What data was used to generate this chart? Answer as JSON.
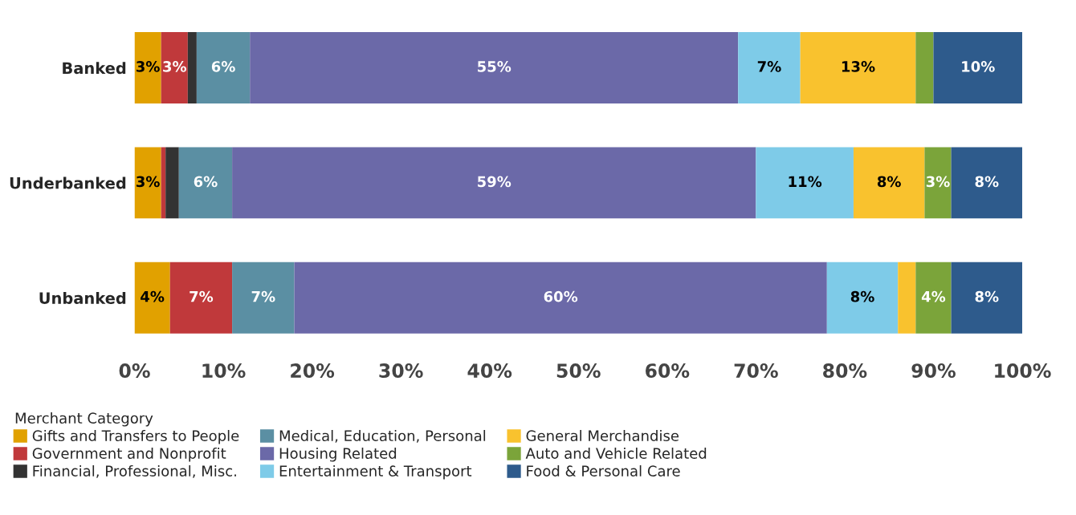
{
  "chart_data": {
    "type": "bar",
    "orientation": "horizontal",
    "stacked": true,
    "categories": [
      "Banked",
      "Underbanked",
      "Unbanked"
    ],
    "xlim": [
      0,
      100
    ],
    "xticks": [
      {
        "value": 0,
        "label": "0%"
      },
      {
        "value": 10,
        "label": "10%"
      },
      {
        "value": 20,
        "label": "20%"
      },
      {
        "value": 30,
        "label": "30%"
      },
      {
        "value": 40,
        "label": "40%"
      },
      {
        "value": 50,
        "label": "50%"
      },
      {
        "value": 60,
        "label": "60%"
      },
      {
        "value": 70,
        "label": "70%"
      },
      {
        "value": 80,
        "label": "80%"
      },
      {
        "value": 90,
        "label": "90%"
      },
      {
        "value": 100,
        "label": "100%"
      }
    ],
    "legend": "bottom left",
    "legend_title": "Merchant Category",
    "grid": false,
    "series": [
      {
        "name": "Gifts and Transfers to People",
        "color": "#e1a100",
        "values": [
          3,
          3,
          4
        ],
        "value_labels": [
          "3%",
          "3%",
          "4%"
        ]
      },
      {
        "name": "Government and Nonprofit",
        "color": "#c0393b",
        "values": [
          3,
          0.5,
          7
        ],
        "value_labels": [
          "3%",
          null,
          "7%"
        ]
      },
      {
        "name": "Financial, Professional, Misc.",
        "color": "#333333",
        "values": [
          1,
          1.5,
          0
        ],
        "value_labels": [
          null,
          null,
          null
        ]
      },
      {
        "name": "Medical, Education, Personal",
        "color": "#5b8fa3",
        "values": [
          6,
          6,
          7
        ],
        "value_labels": [
          "6%",
          "6%",
          "7%"
        ]
      },
      {
        "name": "Housing Related",
        "color": "#6b69a8",
        "values": [
          55,
          59,
          60
        ],
        "value_labels": [
          "55%",
          "59%",
          "60%"
        ]
      },
      {
        "name": "Entertainment & Transport",
        "color": "#7ecbe8",
        "values": [
          7,
          11,
          8
        ],
        "value_labels": [
          "7%",
          "11%",
          "8%"
        ]
      },
      {
        "name": "General Merchandise",
        "color": "#f9c22e",
        "values": [
          13,
          8,
          2
        ],
        "value_labels": [
          "13%",
          "8%",
          null
        ]
      },
      {
        "name": "Auto and Vehicle Related",
        "color": "#7ba43a",
        "values": [
          2,
          3,
          4
        ],
        "value_labels": [
          null,
          "3%",
          "4%"
        ]
      },
      {
        "name": "Food & Personal Care",
        "color": "#2e5b8c",
        "values": [
          10,
          8,
          8
        ],
        "value_labels": [
          "10%",
          "8%",
          "8%"
        ]
      }
    ]
  }
}
